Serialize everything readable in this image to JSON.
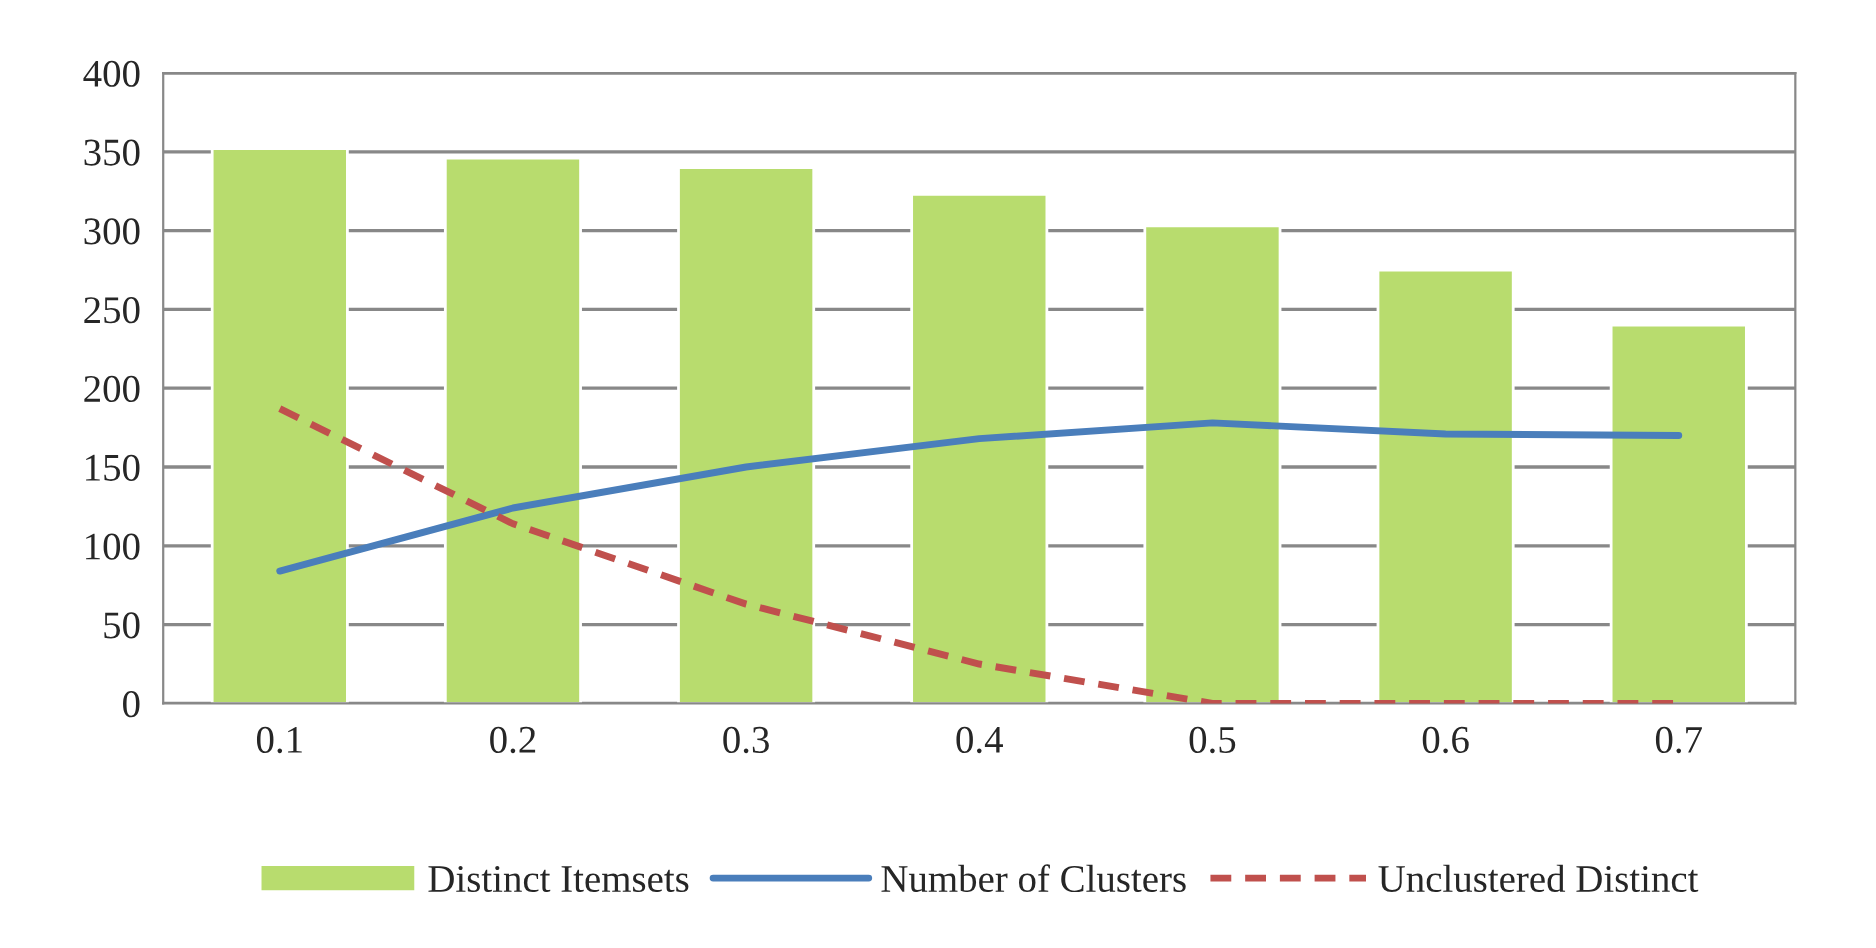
{
  "chart_data": {
    "type": "bar",
    "categories": [
      "0.1",
      "0.2",
      "0.3",
      "0.4",
      "0.5",
      "0.6",
      "0.7"
    ],
    "series": [
      {
        "name": "Distinct Itemsets",
        "color": "#b8dc6e",
        "values": [
          352,
          346,
          340,
          323,
          303,
          275,
          240
        ]
      },
      {
        "name": "Number of Clusters",
        "type": "line",
        "color": "#4a7ebb",
        "line_style": "solid",
        "values": [
          84,
          124,
          150,
          168,
          178,
          171,
          170
        ]
      },
      {
        "name": "Unclustered Distinct",
        "type": "line",
        "color": "#c0504d",
        "line_style": "dashed",
        "values": [
          187,
          114,
          63,
          25,
          0,
          0,
          0
        ]
      }
    ],
    "ylim": [
      0,
      400
    ],
    "yticks": [
      0,
      50,
      100,
      150,
      200,
      250,
      300,
      350,
      400
    ],
    "grid": "y",
    "legend": "bottom",
    "marker": "none"
  }
}
